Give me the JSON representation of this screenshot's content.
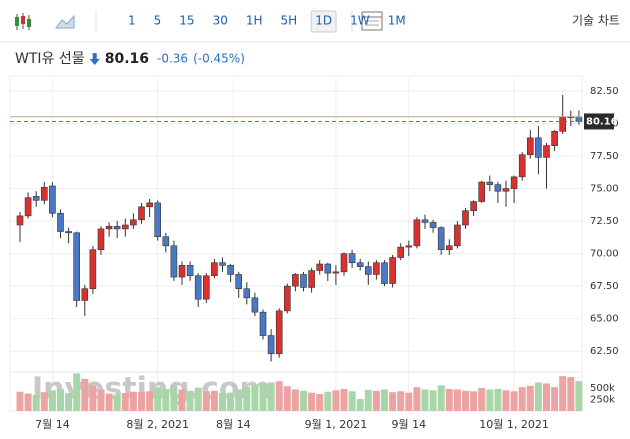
{
  "toolbar": {
    "intervals": [
      {
        "label": "1"
      },
      {
        "label": "5"
      },
      {
        "label": "15"
      },
      {
        "label": "30"
      },
      {
        "label": "1H"
      },
      {
        "label": "5H"
      },
      {
        "label": "1D",
        "selected": true
      },
      {
        "label": "1W"
      },
      {
        "label": "1M"
      }
    ],
    "technical_chart": "기술 차트"
  },
  "header": {
    "name": "WTI유 선물",
    "price": "80.16",
    "change": "-0.36",
    "change_pct": "(-0.45%)"
  },
  "chart_data": {
    "type": "candlestick",
    "watermark": "Investing.com",
    "x": [
      "2021-07-08",
      "2021-07-09",
      "2021-07-12",
      "2021-07-13",
      "2021-07-14",
      "2021-07-15",
      "2021-07-16",
      "2021-07-19",
      "2021-07-20",
      "2021-07-21",
      "2021-07-22",
      "2021-07-23",
      "2021-07-26",
      "2021-07-27",
      "2021-07-28",
      "2021-07-29",
      "2021-07-30",
      "2021-08-02",
      "2021-08-03",
      "2021-08-04",
      "2021-08-05",
      "2021-08-06",
      "2021-08-09",
      "2021-08-10",
      "2021-08-11",
      "2021-08-12",
      "2021-08-13",
      "2021-08-16",
      "2021-08-17",
      "2021-08-18",
      "2021-08-19",
      "2021-08-20",
      "2021-08-23",
      "2021-08-24",
      "2021-08-25",
      "2021-08-26",
      "2021-08-27",
      "2021-08-30",
      "2021-08-31",
      "2021-09-01",
      "2021-09-02",
      "2021-09-03",
      "2021-09-06",
      "2021-09-07",
      "2021-09-08",
      "2021-09-09",
      "2021-09-10",
      "2021-09-13",
      "2021-09-14",
      "2021-09-15",
      "2021-09-16",
      "2021-09-17",
      "2021-09-20",
      "2021-09-21",
      "2021-09-22",
      "2021-09-23",
      "2021-09-24",
      "2021-09-27",
      "2021-09-28",
      "2021-09-29",
      "2021-09-30",
      "2021-10-01",
      "2021-10-04",
      "2021-10-05",
      "2021-10-06",
      "2021-10-07",
      "2021-10-08",
      "2021-10-11",
      "2021-10-12",
      "2021-10-13"
    ],
    "open": [
      72.2,
      72.9,
      74.4,
      74.1,
      75.2,
      73.1,
      71.7,
      71.6,
      66.4,
      67.3,
      70.3,
      71.9,
      72.1,
      71.9,
      72.2,
      72.6,
      73.6,
      73.9,
      71.3,
      70.6,
      68.2,
      69.1,
      68.3,
      66.5,
      68.3,
      69.3,
      69.1,
      68.4,
      67.3,
      66.6,
      65.5,
      63.7,
      62.3,
      65.6,
      67.5,
      68.4,
      67.4,
      68.7,
      69.2,
      68.5,
      68.6,
      70.0,
      69.3,
      69.0,
      68.4,
      69.3,
      67.7,
      69.7,
      70.5,
      70.6,
      72.6,
      72.4,
      72.0,
      70.3,
      70.6,
      72.2,
      73.3,
      74.0,
      75.5,
      75.3,
      74.8,
      75.0,
      75.9,
      77.6,
      78.9,
      77.4,
      78.3,
      79.4,
      80.5,
      80.52
    ],
    "high": [
      73.2,
      74.7,
      74.8,
      75.5,
      75.5,
      73.4,
      72.0,
      71.7,
      67.6,
      70.6,
      72.1,
      72.4,
      72.5,
      72.7,
      73.1,
      73.9,
      74.2,
      74.1,
      71.6,
      71.0,
      69.4,
      69.4,
      68.5,
      68.5,
      69.6,
      69.7,
      69.2,
      68.6,
      67.8,
      67.0,
      65.7,
      64.2,
      65.8,
      67.7,
      68.5,
      68.6,
      68.9,
      69.5,
      69.3,
      69.1,
      70.1,
      70.3,
      69.6,
      69.4,
      69.5,
      69.5,
      69.9,
      70.8,
      71.0,
      72.8,
      73.0,
      72.6,
      72.1,
      71.1,
      72.5,
      73.5,
      74.1,
      75.6,
      76.0,
      75.5,
      75.6,
      76.0,
      77.8,
      79.5,
      79.8,
      78.5,
      79.5,
      82.2,
      81.0,
      81.0
    ],
    "low": [
      70.9,
      72.7,
      73.6,
      73.8,
      72.8,
      71.2,
      70.8,
      65.9,
      65.2,
      66.9,
      69.9,
      71.3,
      71.2,
      71.3,
      71.9,
      72.3,
      72.8,
      71.0,
      70.1,
      67.9,
      67.6,
      67.9,
      65.9,
      66.2,
      68.1,
      68.6,
      67.8,
      66.6,
      66.1,
      65.2,
      63.4,
      61.7,
      62.0,
      65.4,
      67.1,
      67.1,
      67.0,
      68.4,
      67.9,
      67.6,
      68.3,
      68.9,
      68.7,
      67.6,
      68.0,
      67.5,
      67.4,
      69.5,
      69.8,
      70.4,
      71.9,
      71.6,
      69.9,
      69.9,
      70.4,
      71.9,
      72.9,
      73.9,
      74.8,
      73.9,
      73.6,
      73.9,
      75.6,
      77.3,
      76.1,
      75.0,
      77.9,
      79.2,
      79.8,
      79.9
    ],
    "close": [
      72.9,
      74.3,
      74.1,
      75.1,
      73.1,
      71.7,
      71.6,
      66.4,
      67.3,
      70.3,
      71.9,
      72.1,
      71.9,
      72.2,
      72.6,
      73.6,
      73.9,
      71.3,
      70.6,
      68.2,
      69.1,
      68.3,
      66.5,
      68.3,
      69.3,
      69.1,
      68.4,
      67.3,
      66.6,
      65.5,
      63.7,
      62.3,
      65.6,
      67.5,
      68.4,
      67.4,
      68.7,
      69.2,
      68.5,
      68.6,
      70.0,
      69.3,
      69.0,
      68.4,
      69.3,
      67.7,
      69.7,
      70.5,
      70.6,
      72.6,
      72.4,
      72.0,
      70.3,
      70.6,
      72.2,
      73.3,
      74.0,
      75.5,
      75.3,
      74.8,
      75.0,
      75.9,
      77.6,
      78.9,
      77.4,
      78.3,
      79.4,
      80.5,
      80.52,
      80.16
    ],
    "volume": [
      420000,
      380000,
      350000,
      410000,
      450000,
      480000,
      390000,
      820000,
      700000,
      560000,
      470000,
      380000,
      360000,
      390000,
      420000,
      410000,
      430000,
      520000,
      480000,
      560000,
      470000,
      440000,
      510000,
      430000,
      440000,
      390000,
      400000,
      470000,
      520000,
      560000,
      600000,
      620000,
      650000,
      540000,
      470000,
      440000,
      400000,
      370000,
      420000,
      450000,
      480000,
      430000,
      260000,
      460000,
      440000,
      470000,
      410000,
      430000,
      400000,
      520000,
      470000,
      450000,
      560000,
      480000,
      470000,
      440000,
      430000,
      500000,
      470000,
      480000,
      450000,
      430000,
      520000,
      550000,
      620000,
      600000,
      520000,
      760000,
      740000,
      650000
    ],
    "up_color": "#d9322e",
    "down_color": "#4a78c2",
    "up_volume_color": "#eba3a3",
    "down_volume_color": "#a9d6a9",
    "last_price": 80.16,
    "prev_close": 80.52,
    "ylim": [
      60.9,
      83.5
    ],
    "yticks": [
      {
        "value": 62.5,
        "label": "62.50"
      },
      {
        "value": 65,
        "label": "65.00"
      },
      {
        "value": 67.5,
        "label": "67.50"
      },
      {
        "value": 70,
        "label": "70.00"
      },
      {
        "value": 72.5,
        "label": "72.50"
      },
      {
        "value": 75,
        "label": "75.00"
      },
      {
        "value": 77.5,
        "label": "77.50"
      },
      {
        "value": 80,
        "label": "80.00"
      },
      {
        "value": 82.5,
        "label": "82.50"
      }
    ],
    "y2lim": [
      0,
      850000
    ],
    "y2ticks": [
      {
        "value": 250000,
        "label": "250k"
      },
      {
        "value": 500000,
        "label": "500k"
      }
    ],
    "xticks": [
      {
        "value": "2021-07-14",
        "label": "7월 14"
      },
      {
        "value": "2021-08-02",
        "label": "8월 2, 2021"
      },
      {
        "value": "2021-08-14",
        "label": "8월 14"
      },
      {
        "value": "2021-09-01",
        "label": "9월 1, 2021"
      },
      {
        "value": "2021-09-14",
        "label": "9월 14"
      },
      {
        "value": "2021-10-01",
        "label": "10월 1, 2021"
      }
    ],
    "grid": true
  }
}
